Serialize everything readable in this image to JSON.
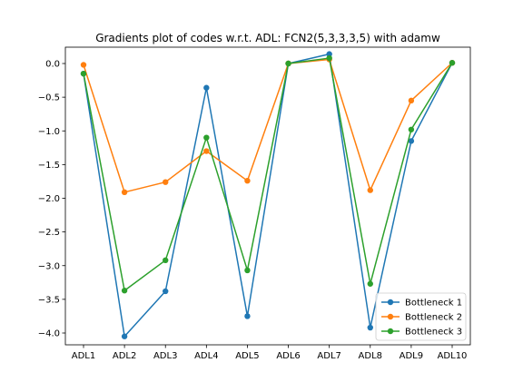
{
  "chart_data": {
    "type": "line",
    "title": "Gradients plot of codes w.r.t. ADL: FCN2(5,3,3,3,5) with adamw",
    "xlabel": "",
    "ylabel": "",
    "categories": [
      "ADL1",
      "ADL2",
      "ADL3",
      "ADL4",
      "ADL5",
      "ADL6",
      "ADL7",
      "ADL8",
      "ADL9",
      "ADL10"
    ],
    "ylim": [
      -4.1,
      0.25
    ],
    "yticks": [
      0.0,
      -0.5,
      -1.0,
      -1.5,
      -2.0,
      -2.5,
      -3.0,
      -3.5,
      -4.0
    ],
    "ytick_labels": [
      "0.0",
      "−0.5",
      "−1.0",
      "−1.5",
      "−2.0",
      "−2.5",
      "−3.0",
      "−3.5",
      "−4.0"
    ],
    "grid": false,
    "legend_position": "lower-right",
    "series": [
      {
        "name": "Bottleneck 1",
        "color": "#1f77b4",
        "values": [
          -0.15,
          -4.05,
          -3.38,
          -0.36,
          -3.75,
          0.0,
          0.14,
          -3.92,
          -1.15,
          0.01
        ]
      },
      {
        "name": "Bottleneck 2",
        "color": "#ff7f0e",
        "values": [
          -0.02,
          -1.91,
          -1.76,
          -1.3,
          -1.74,
          0.0,
          0.06,
          -1.88,
          -0.55,
          0.01
        ]
      },
      {
        "name": "Bottleneck 3",
        "color": "#2ca02c",
        "values": [
          -0.15,
          -3.37,
          -2.92,
          -1.1,
          -3.07,
          0.0,
          0.08,
          -3.27,
          -0.98,
          0.01
        ]
      }
    ]
  }
}
